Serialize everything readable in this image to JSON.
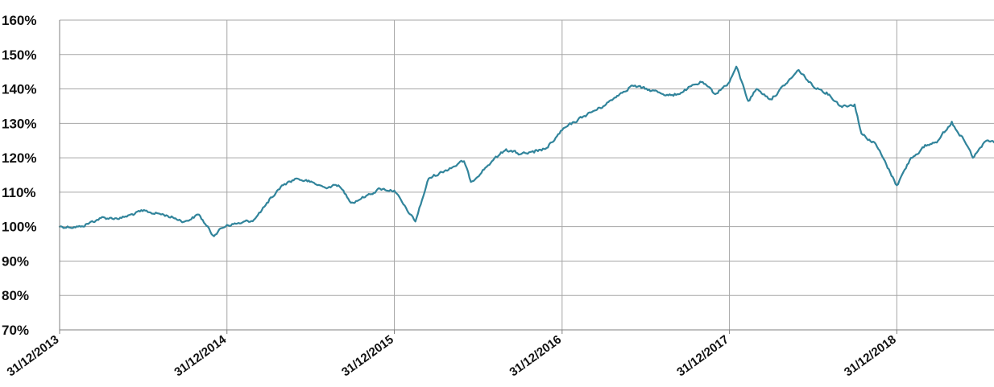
{
  "chart_data": {
    "type": "line",
    "title": "",
    "xlabel": "",
    "ylabel": "",
    "ylim": [
      70,
      160
    ],
    "y_tick_labels": [
      "160%",
      "150%",
      "140%",
      "130%",
      "120%",
      "110%",
      "100%",
      "90%",
      "80%",
      "70%"
    ],
    "y_ticks": [
      160,
      150,
      140,
      130,
      120,
      110,
      100,
      90,
      80,
      70
    ],
    "x_tick_labels": [
      "31/12/2013",
      "31/12/2014",
      "31/12/2015",
      "31/12/2016",
      "31/12/2017",
      "31/12/2018"
    ],
    "x_range": [
      "2013-12-31",
      "2019-07-31"
    ],
    "grid": true,
    "line_color": "#31849b",
    "series": [
      {
        "name": "",
        "points": [
          [
            "2013-12-31",
            100.0
          ],
          [
            "2014-02-15",
            100.0
          ],
          [
            "2014-03-31",
            102.5
          ],
          [
            "2014-05-15",
            102.5
          ],
          [
            "2014-06-30",
            104.5
          ],
          [
            "2014-08-15",
            103.5
          ],
          [
            "2014-09-30",
            101.5
          ],
          [
            "2014-10-31",
            103.5
          ],
          [
            "2014-11-30",
            97.5
          ],
          [
            "2014-12-31",
            100.5
          ],
          [
            "2015-01-31",
            101.0
          ],
          [
            "2015-02-28",
            102.0
          ],
          [
            "2015-03-31",
            107.0
          ],
          [
            "2015-04-30",
            112.0
          ],
          [
            "2015-05-31",
            114.0
          ],
          [
            "2015-06-30",
            113.0
          ],
          [
            "2015-07-31",
            111.5
          ],
          [
            "2015-08-31",
            112.0
          ],
          [
            "2015-09-30",
            107.0
          ],
          [
            "2015-10-31",
            109.0
          ],
          [
            "2015-11-30",
            111.0
          ],
          [
            "2015-12-31",
            110.5
          ],
          [
            "2016-01-31",
            104.0
          ],
          [
            "2016-02-15",
            101.5
          ],
          [
            "2016-03-15",
            114.0
          ],
          [
            "2016-04-30",
            117.0
          ],
          [
            "2016-05-31",
            119.0
          ],
          [
            "2016-06-15",
            113.0
          ],
          [
            "2016-07-31",
            119.0
          ],
          [
            "2016-08-31",
            122.5
          ],
          [
            "2016-09-30",
            121.0
          ],
          [
            "2016-10-31",
            121.5
          ],
          [
            "2016-11-30",
            123.0
          ],
          [
            "2016-12-31",
            128.0
          ],
          [
            "2017-02-15",
            132.0
          ],
          [
            "2017-03-31",
            135.0
          ],
          [
            "2017-04-30",
            138.0
          ],
          [
            "2017-05-31",
            141.0
          ],
          [
            "2017-06-30",
            140.0
          ],
          [
            "2017-07-31",
            139.0
          ],
          [
            "2017-08-31",
            138.0
          ],
          [
            "2017-09-30",
            140.0
          ],
          [
            "2017-10-31",
            142.0
          ],
          [
            "2017-11-30",
            138.5
          ],
          [
            "2017-12-31",
            142.0
          ],
          [
            "2018-01-15",
            146.5
          ],
          [
            "2018-02-10",
            136.5
          ],
          [
            "2018-02-28",
            140.0
          ],
          [
            "2018-03-31",
            137.0
          ],
          [
            "2018-04-30",
            141.0
          ],
          [
            "2018-05-31",
            145.5
          ],
          [
            "2018-06-30",
            141.0
          ],
          [
            "2018-07-31",
            139.0
          ],
          [
            "2018-08-31",
            135.0
          ],
          [
            "2018-09-30",
            135.5
          ],
          [
            "2018-10-15",
            127.0
          ],
          [
            "2018-11-15",
            124.0
          ],
          [
            "2018-12-31",
            112.0
          ],
          [
            "2019-01-31",
            120.0
          ],
          [
            "2019-02-28",
            123.0
          ],
          [
            "2019-03-31",
            125.0
          ],
          [
            "2019-04-30",
            130.5
          ],
          [
            "2019-05-31",
            124.0
          ],
          [
            "2019-06-15",
            120.0
          ],
          [
            "2019-07-15",
            125.0
          ],
          [
            "2019-07-31",
            124.5
          ]
        ]
      }
    ]
  }
}
